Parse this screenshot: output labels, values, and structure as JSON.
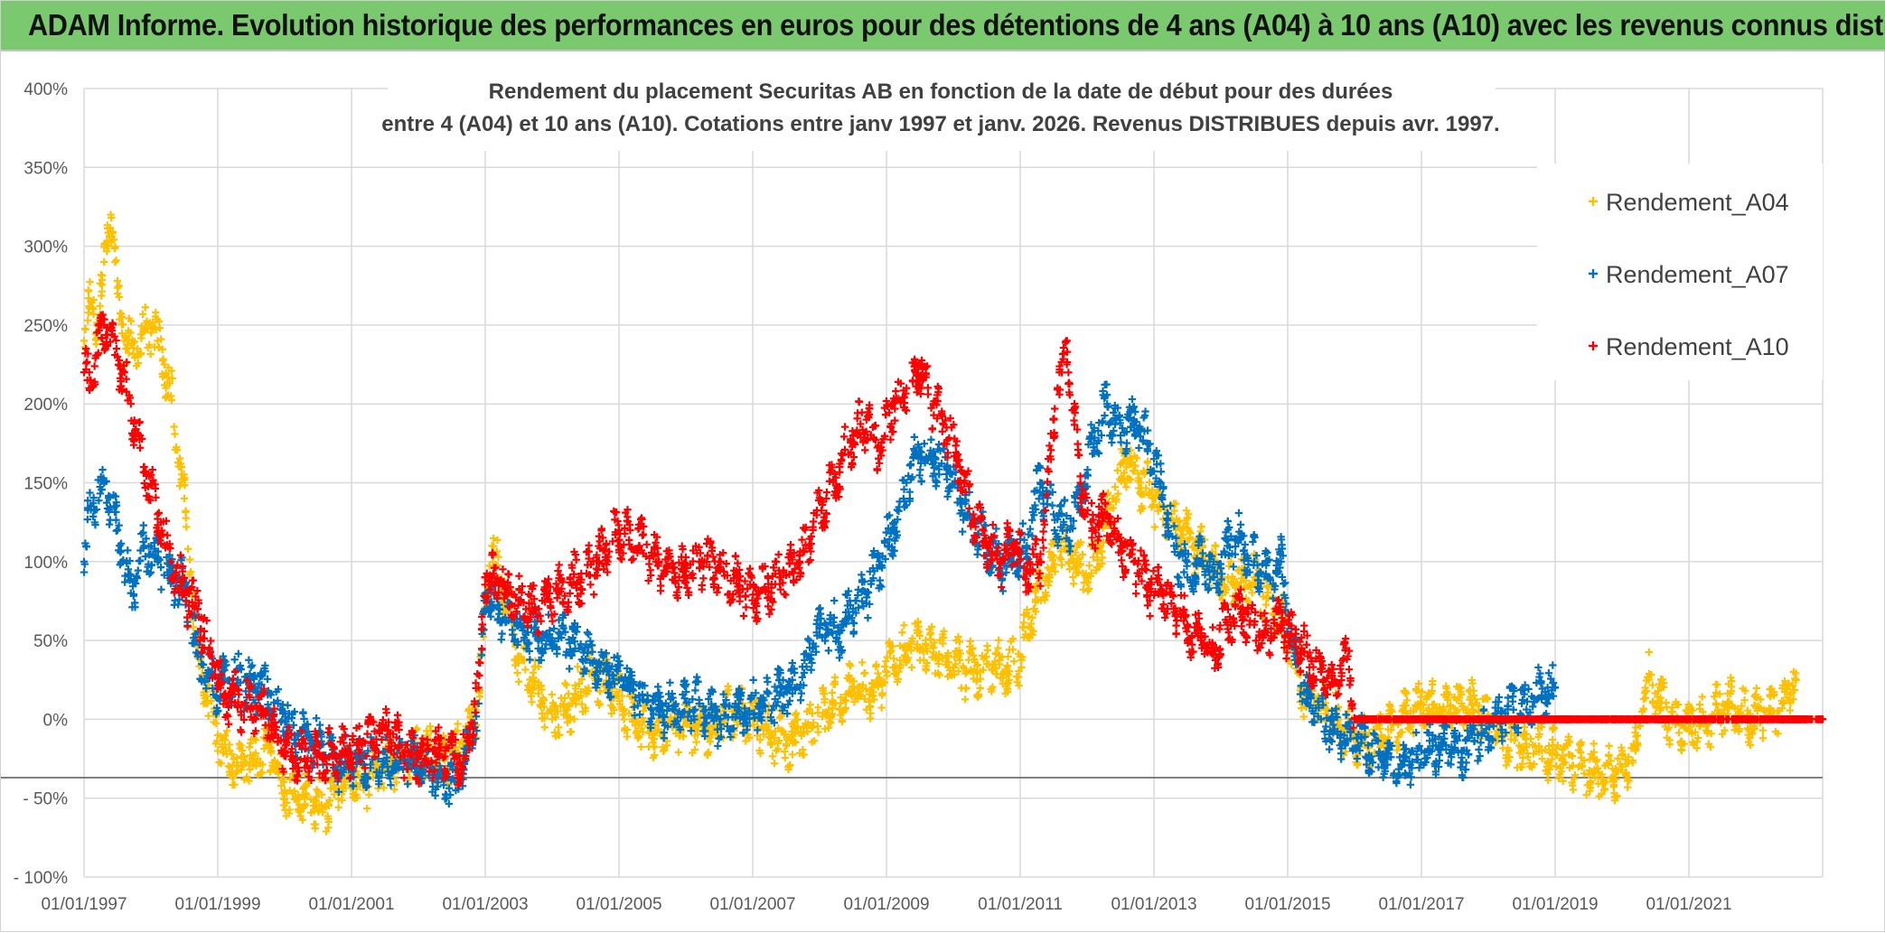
{
  "banner": {
    "title": "ADAM Informe. Evolution historique des performances en euros pour des détentions de 4 ans (A04) à 10 ans (A10) avec les revenus connus distribués",
    "color": "#7ac96f"
  },
  "chart_data": {
    "type": "scatter",
    "title_lines": [
      "Rendement du placement Securitas AB en fonction de la date de début pour des durées",
      "entre 4 (A04) et 10 ans (A10). Cotations entre janv 1997 et janv. 2026. Revenus DISTRIBUES depuis avr. 1997."
    ],
    "xlabel": "",
    "ylabel": "",
    "x_range": [
      1997.0,
      2023.0
    ],
    "ylim": [
      -100,
      400
    ],
    "y_ticks": [
      -100,
      -50,
      0,
      50,
      100,
      150,
      200,
      250,
      300,
      350,
      400
    ],
    "y_tick_labels": [
      "- 100%",
      "- 50%",
      "0%",
      "50%",
      "100%",
      "150%",
      "200%",
      "250%",
      "300%",
      "350%",
      "400%"
    ],
    "x_ticks": [
      1997,
      1999,
      2001,
      2003,
      2005,
      2007,
      2009,
      2011,
      2013,
      2015,
      2017,
      2019,
      2021
    ],
    "x_tick_labels": [
      "01/01/1997",
      "01/01/1999",
      "01/01/2001",
      "01/01/2003",
      "01/01/2005",
      "01/01/2007",
      "01/01/2009",
      "01/01/2011",
      "01/01/2013",
      "01/01/2015",
      "01/01/2017",
      "01/01/2019",
      "01/01/2021"
    ],
    "reference_line_y": -37,
    "marker": "+",
    "legend_position": "top-right",
    "series": [
      {
        "name": "Rendement_A04",
        "color": "#ffc000",
        "x": [
          1997.0,
          1997.1,
          1997.2,
          1997.3,
          1997.4,
          1997.5,
          1997.6,
          1997.8,
          1998.0,
          1998.1,
          1998.2,
          1998.3,
          1998.5,
          1998.7,
          1999.0,
          1999.3,
          1999.6,
          1999.8,
          2000.0,
          2000.3,
          2000.6,
          2000.9,
          2001.2,
          2001.5,
          2001.8,
          2002.1,
          2002.4,
          2002.7,
          2002.9,
          2003.0,
          2003.1,
          2003.3,
          2003.5,
          2003.8,
          2004.0,
          2004.3,
          2004.6,
          2004.9,
          2005.2,
          2005.5,
          2005.8,
          2006.1,
          2006.4,
          2006.7,
          2007.0,
          2007.3,
          2007.6,
          2007.9,
          2008.2,
          2008.5,
          2008.8,
          2009.0,
          2009.3,
          2009.6,
          2009.9,
          2010.2,
          2010.5,
          2010.8,
          2011.0,
          2011.2,
          2011.4,
          2011.6,
          2011.8,
          2012.0,
          2012.2,
          2012.4,
          2012.6,
          2012.8,
          2013.0,
          2013.2,
          2013.4,
          2013.6,
          2013.9,
          2014.2,
          2014.5,
          2014.8,
          2015.0,
          2015.2,
          2015.5,
          2015.8,
          2016.1,
          2016.4,
          2016.7,
          2017.0,
          2017.3,
          2017.6,
          2017.9,
          2018.2,
          2018.5,
          2018.8,
          2019.1,
          2019.4,
          2019.7,
          2019.9,
          2020.0,
          2020.2,
          2020.4,
          2020.7,
          2021.0,
          2021.3,
          2021.6,
          2021.9,
          2022.2,
          2022.4,
          2022.6
        ],
        "y": [
          240,
          265,
          250,
          290,
          320,
          270,
          240,
          235,
          250,
          240,
          225,
          205,
          140,
          40,
          -10,
          -30,
          -25,
          -20,
          -45,
          -50,
          -55,
          -35,
          -40,
          -30,
          -25,
          -20,
          -25,
          -15,
          10,
          70,
          110,
          80,
          40,
          20,
          0,
          10,
          30,
          20,
          0,
          -10,
          -5,
          -5,
          -5,
          5,
          0,
          -10,
          -15,
          -5,
          10,
          20,
          15,
          30,
          45,
          45,
          40,
          30,
          35,
          30,
          40,
          70,
          90,
          110,
          100,
          90,
          110,
          140,
          165,
          150,
          140,
          130,
          120,
          110,
          95,
          85,
          90,
          70,
          55,
          20,
          10,
          -5,
          -15,
          -10,
          0,
          10,
          5,
          10,
          5,
          -10,
          -20,
          -20,
          -25,
          -30,
          -35,
          -35,
          -30,
          -20,
          25,
          0,
          -5,
          0,
          10,
          0,
          5,
          10,
          25
        ]
      },
      {
        "name": "Rendement_A07",
        "color": "#0070c0",
        "x": [
          1997.0,
          1997.1,
          1997.3,
          1997.5,
          1997.7,
          1997.9,
          1998.1,
          1998.3,
          1998.5,
          1998.7,
          1999.0,
          1999.3,
          1999.6,
          1999.9,
          2000.2,
          2000.5,
          2000.8,
          2001.1,
          2001.4,
          2001.7,
          2002.0,
          2002.3,
          2002.6,
          2002.9,
          2003.0,
          2003.2,
          2003.5,
          2003.8,
          2004.1,
          2004.4,
          2004.7,
          2005.0,
          2005.3,
          2005.6,
          2005.9,
          2006.2,
          2006.5,
          2006.8,
          2007.1,
          2007.4,
          2007.7,
          2007.9,
          2008.1,
          2008.3,
          2008.5,
          2008.7,
          2008.9,
          2009.1,
          2009.3,
          2009.5,
          2009.7,
          2009.9,
          2010.1,
          2010.3,
          2010.5,
          2010.7,
          2010.9,
          2011.1,
          2011.3,
          2011.5,
          2011.7,
          2011.9,
          2012.1,
          2012.3,
          2012.5,
          2012.7,
          2012.9,
          2013.1,
          2013.3,
          2013.5,
          2013.7,
          2013.9,
          2014.1,
          2014.3,
          2014.5,
          2014.7,
          2014.9,
          2015.1,
          2015.3,
          2015.5,
          2015.8,
          2016.1,
          2016.4,
          2016.7,
          2017.0,
          2017.3,
          2017.6,
          2017.9,
          2018.2,
          2018.5,
          2018.8,
          2019.0
        ],
        "y": [
          100,
          135,
          150,
          120,
          80,
          110,
          100,
          90,
          85,
          40,
          20,
          25,
          20,
          10,
          -10,
          -15,
          -30,
          -25,
          -25,
          -30,
          -25,
          -35,
          -40,
          10,
          80,
          70,
          60,
          50,
          55,
          45,
          35,
          25,
          15,
          5,
          5,
          10,
          0,
          5,
          10,
          15,
          20,
          45,
          60,
          55,
          70,
          80,
          100,
          120,
          150,
          170,
          165,
          160,
          140,
          125,
          110,
          100,
          100,
          110,
          150,
          130,
          120,
          140,
          175,
          200,
          180,
          190,
          175,
          150,
          110,
          90,
          100,
          90,
          110,
          115,
          100,
          90,
          100,
          40,
          10,
          0,
          -10,
          -15,
          -25,
          -30,
          -20,
          -15,
          -20,
          -10,
          0,
          10,
          15,
          20
        ]
      },
      {
        "name": "Rendement_A10",
        "color": "#ff0000",
        "x": [
          1997.0,
          1997.1,
          1997.3,
          1997.5,
          1997.7,
          1997.9,
          1998.1,
          1998.3,
          1998.5,
          1998.7,
          1998.9,
          1999.1,
          1999.4,
          1999.7,
          2000.0,
          2000.3,
          2000.6,
          2000.9,
          2001.2,
          2001.5,
          2001.8,
          2002.1,
          2002.4,
          2002.7,
          2002.9,
          2003.0,
          2003.2,
          2003.5,
          2003.8,
          2004.1,
          2004.4,
          2004.7,
          2005.0,
          2005.3,
          2005.6,
          2005.9,
          2006.2,
          2006.5,
          2006.8,
          2007.1,
          2007.4,
          2007.7,
          2007.9,
          2008.1,
          2008.3,
          2008.5,
          2008.7,
          2008.9,
          2009.1,
          2009.3,
          2009.5,
          2009.7,
          2009.9,
          2010.1,
          2010.3,
          2010.5,
          2010.7,
          2010.9,
          2011.1,
          2011.3,
          2011.5,
          2011.7,
          2011.9,
          2012.1,
          2012.3,
          2012.5,
          2012.7,
          2012.9,
          2013.1,
          2013.3,
          2013.5,
          2013.7,
          2013.9,
          2014.1,
          2014.3,
          2014.5,
          2014.7,
          2014.9,
          2015.1,
          2015.3,
          2015.5,
          2015.7,
          2015.9,
          2016.0,
          2016.5,
          2017.0,
          2017.5,
          2018.0,
          2018.5,
          2019.0,
          2019.5,
          2020.0,
          2020.5,
          2021.0,
          2021.5,
          2022.0,
          2022.5,
          2023.0
        ],
        "y": [
          220,
          215,
          250,
          230,
          200,
          160,
          130,
          100,
          80,
          70,
          40,
          15,
          10,
          5,
          -20,
          -25,
          -25,
          -20,
          -15,
          -5,
          -20,
          -25,
          -20,
          -25,
          20,
          90,
          85,
          75,
          70,
          80,
          90,
          100,
          120,
          110,
          100,
          90,
          100,
          95,
          85,
          80,
          90,
          100,
          120,
          140,
          160,
          180,
          190,
          170,
          200,
          210,
          225,
          200,
          185,
          160,
          130,
          110,
          100,
          110,
          95,
          100,
          190,
          240,
          150,
          120,
          130,
          110,
          100,
          85,
          80,
          70,
          60,
          50,
          45,
          60,
          70,
          60,
          55,
          60,
          50,
          40,
          30,
          25,
          40,
          0,
          0,
          0,
          0,
          0,
          0,
          0,
          0,
          0,
          0,
          0,
          0,
          0,
          0,
          0
        ]
      }
    ]
  }
}
